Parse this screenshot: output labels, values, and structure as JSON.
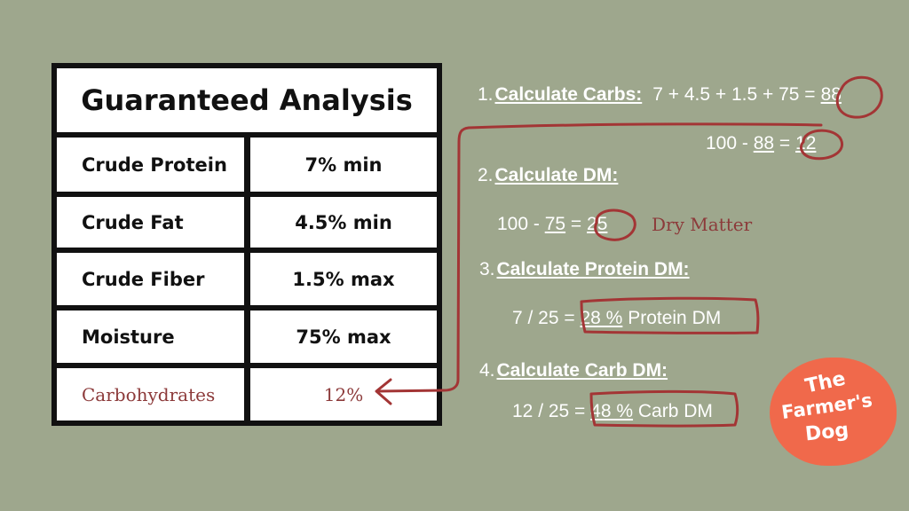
{
  "table": {
    "title": "Guaranteed Analysis",
    "rows": [
      {
        "label": "Crude Protein",
        "value": "7% min"
      },
      {
        "label": "Crude Fat",
        "value": "4.5% min"
      },
      {
        "label": "Crude Fiber",
        "value": "1.5% max"
      },
      {
        "label": "Moisture",
        "value": "75% max"
      },
      {
        "label": "Carbohydrates",
        "value": "12%"
      }
    ]
  },
  "steps": [
    {
      "num": "1.",
      "title": "Calculate Carbs:",
      "equation_prefix": "7 + 4.5 + 1.5 + 75 =",
      "result": "88",
      "sub": {
        "prefix": "100 -",
        "operand": "88",
        "eq": "=",
        "result": "12"
      }
    },
    {
      "num": "2.",
      "title": "Calculate DM:",
      "equation": {
        "prefix": "100 -",
        "operand": "75",
        "eq": "=",
        "result": "25"
      },
      "note": "Dry Matter"
    },
    {
      "num": "3.",
      "title": "Calculate Protein DM:",
      "equation": {
        "prefix": "7 / 25 =",
        "result": "28 %",
        "suffix": "Protein DM"
      }
    },
    {
      "num": "4.",
      "title": "Calculate Carb DM:",
      "equation": {
        "prefix": "12 / 25 =",
        "result": "48 %",
        "suffix": "Carb DM"
      }
    }
  ],
  "logo": {
    "line1": "The",
    "line2": "Farmer's",
    "line3": "Dog"
  },
  "colors": {
    "background": "#9ea78d",
    "annotation": "#a33535",
    "logo": "#f0694b"
  }
}
